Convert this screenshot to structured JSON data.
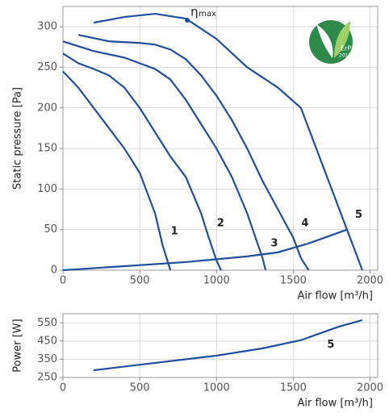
{
  "chart_data": [
    {
      "type": "line",
      "ylabel": "Static pressure [Pa]",
      "xlabel": "Air flow [m³/h]",
      "xlim": [
        0,
        2050
      ],
      "ylim": [
        0,
        325
      ],
      "xticks": [
        0,
        500,
        1000,
        1500,
        2000
      ],
      "yticks": [
        0,
        50,
        100,
        150,
        200,
        250,
        300
      ],
      "grid": true,
      "series": [
        {
          "name": "1",
          "color": "#1f4f9c",
          "x": [
            0,
            100,
            200,
            300,
            400,
            500,
            600,
            650,
            700
          ],
          "values": [
            245,
            225,
            200,
            175,
            150,
            120,
            70,
            30,
            0
          ]
        },
        {
          "name": "2",
          "color": "#1f4f9c",
          "x": [
            0,
            100,
            200,
            300,
            400,
            500,
            600,
            700,
            800,
            900,
            950,
            1000,
            1030
          ],
          "values": [
            267,
            255,
            248,
            240,
            225,
            200,
            170,
            140,
            115,
            70,
            40,
            12,
            0
          ]
        },
        {
          "name": "3",
          "color": "#1f4f9c",
          "x": [
            0,
            200,
            400,
            600,
            700,
            800,
            900,
            1000,
            1100,
            1200,
            1300,
            1320
          ],
          "values": [
            282,
            270,
            262,
            248,
            235,
            210,
            180,
            150,
            115,
            70,
            15,
            0
          ]
        },
        {
          "name": "4",
          "color": "#1f4f9c",
          "x": [
            100,
            300,
            500,
            600,
            700,
            800,
            900,
            1000,
            1100,
            1200,
            1300,
            1400,
            1500,
            1550,
            1600
          ],
          "values": [
            290,
            282,
            280,
            278,
            272,
            260,
            240,
            215,
            185,
            150,
            110,
            75,
            40,
            15,
            0
          ]
        },
        {
          "name": "5",
          "color": "#1f4f9c",
          "x": [
            200,
            400,
            600,
            800,
            1000,
            1200,
            1400,
            1550,
            1650,
            1750,
            1850,
            1950
          ],
          "values": [
            305,
            312,
            316,
            310,
            285,
            250,
            225,
            200,
            150,
            100,
            50,
            0
          ]
        },
        {
          "color": "#1f4f9c",
          "x": [
            0,
            400,
            800,
            1200,
            1400,
            1600,
            1850
          ],
          "values": [
            0,
            5,
            10,
            17,
            22,
            33,
            50
          ]
        }
      ],
      "annotation": {
        "symbol": "η",
        "subscript": "max",
        "x": 810,
        "y": 308
      },
      "badge": [
        "ErP",
        "2018"
      ]
    },
    {
      "type": "line",
      "ylabel": "Power [W]",
      "xlabel": "Air flow [m³/h]",
      "xlim": [
        0,
        2050
      ],
      "ylim": [
        250,
        600
      ],
      "xticks": [
        0,
        500,
        1000,
        1500,
        2000
      ],
      "yticks": [
        250,
        350,
        450,
        550
      ],
      "grid": true,
      "series": [
        {
          "name": "5",
          "color": "#1f4f9c",
          "x": [
            200,
            500,
            1000,
            1300,
            1550,
            1700,
            1800,
            1950
          ],
          "values": [
            290,
            320,
            370,
            410,
            455,
            500,
            530,
            565
          ]
        }
      ]
    }
  ]
}
